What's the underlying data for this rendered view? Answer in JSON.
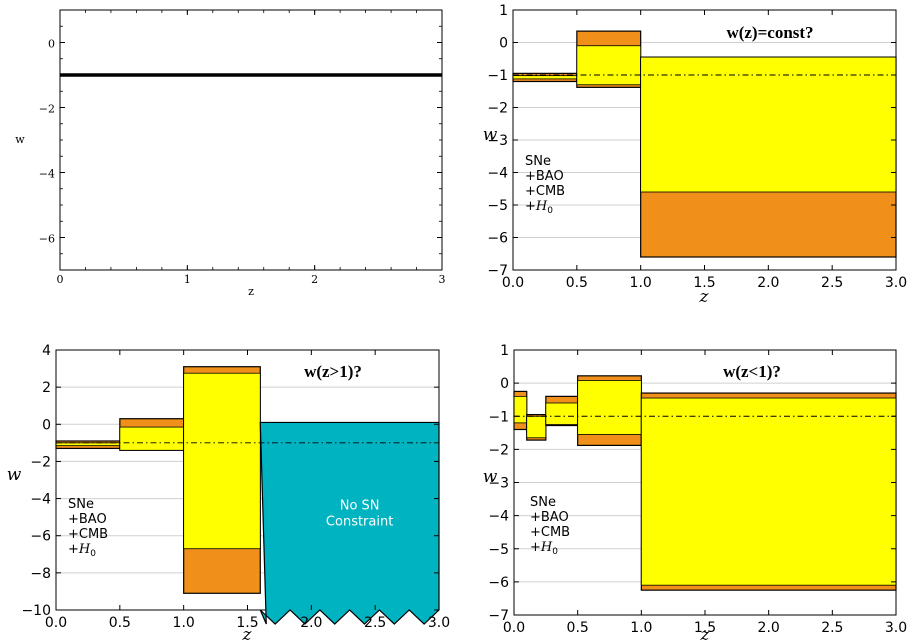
{
  "colors": {
    "orange": "#f0901a",
    "yellow": "#ffff00",
    "teal": "#00b3c0",
    "grid": "#d0d0d0",
    "line": "#000000"
  },
  "chart_data": [
    {
      "id": "p1",
      "type": "line",
      "title": "",
      "xlabel": "z",
      "ylabel": "w",
      "xlim": [
        0,
        3
      ],
      "ylim": [
        -7,
        1
      ],
      "xticks": [
        0,
        1,
        2,
        3
      ],
      "yticks": [
        0,
        -2,
        -4,
        -6
      ],
      "ytick_labels": [
        "0",
        "−2",
        "−4",
        "−6"
      ],
      "grid": false,
      "lines": [
        {
          "x": [
            0,
            3
          ],
          "y": [
            -1,
            -1
          ],
          "style": "thick"
        }
      ]
    },
    {
      "id": "p2",
      "type": "bar",
      "title": "w(z)=const?",
      "xlabel": "z",
      "ylabel": "w",
      "xlim": [
        0,
        3
      ],
      "ylim": [
        -7,
        1
      ],
      "xticks": [
        0,
        0.5,
        1,
        1.5,
        2,
        2.5,
        3
      ],
      "xtick_labels": [
        "0.0",
        "0.5",
        "1.0",
        "1.5",
        "2.0",
        "2.5",
        "3.0"
      ],
      "yticks": [
        1,
        0,
        -1,
        -2,
        -3,
        -4,
        -5,
        -6,
        -7
      ],
      "ytick_labels": [
        "1",
        "0",
        "−1",
        "−2",
        "−3",
        "−4",
        "−5",
        "−6",
        "−7"
      ],
      "grid": true,
      "reference_line": -1,
      "bins": [
        {
          "z": [
            0,
            0.5
          ],
          "outer": [
            -1.2,
            -0.95
          ],
          "inner": [
            -1.12,
            -1.02
          ]
        },
        {
          "z": [
            0.5,
            1.0
          ],
          "outer": [
            -1.38,
            0.35
          ],
          "inner": [
            -1.3,
            -0.1
          ]
        },
        {
          "z": [
            1.0,
            3.0
          ],
          "outer": [
            -6.6,
            -0.45
          ],
          "inner": [
            -4.6,
            -0.45
          ]
        }
      ],
      "annotation": [
        "SNe",
        "+BAO",
        "+CMB",
        "+H0"
      ]
    },
    {
      "id": "p3",
      "type": "bar",
      "title": "w(z>1)?",
      "xlabel": "z",
      "ylabel": "w",
      "xlim": [
        0,
        3
      ],
      "ylim": [
        -10,
        4
      ],
      "xticks": [
        0,
        0.5,
        1,
        1.5,
        2,
        2.5,
        3
      ],
      "xtick_labels": [
        "0.0",
        "0.5",
        "1.0",
        "1.5",
        "2.0",
        "2.5",
        "3.0"
      ],
      "yticks": [
        4,
        2,
        0,
        -2,
        -4,
        -6,
        -8,
        -10
      ],
      "ytick_labels": [
        "4",
        "2",
        "0",
        "−2",
        "−4",
        "−6",
        "−8",
        "−10"
      ],
      "grid": true,
      "reference_line": -1,
      "bins": [
        {
          "z": [
            0,
            0.5
          ],
          "outer": [
            -1.3,
            -0.9
          ],
          "inner": [
            -1.15,
            -1.0
          ]
        },
        {
          "z": [
            0.5,
            1.0
          ],
          "outer": [
            -1.4,
            0.3
          ],
          "inner": [
            -1.4,
            -0.15
          ]
        },
        {
          "z": [
            1.0,
            1.6
          ],
          "outer": [
            -9.1,
            3.1
          ],
          "inner": [
            -6.7,
            2.75
          ]
        }
      ],
      "unconstrained": {
        "z": [
          1.6,
          3.0
        ],
        "top": 0.1,
        "label": [
          "No SN",
          "Constraint"
        ]
      },
      "annotation": [
        "SNe",
        "+BAO",
        "+CMB",
        "+H0"
      ]
    },
    {
      "id": "p4",
      "type": "bar",
      "title": "w(z<1)?",
      "xlabel": "z",
      "ylabel": "w",
      "xlim": [
        0,
        3
      ],
      "ylim": [
        -7,
        1
      ],
      "xticks": [
        0,
        0.5,
        1,
        1.5,
        2,
        2.5,
        3
      ],
      "xtick_labels": [
        "0.0",
        "0.5",
        "1.0",
        "1.5",
        "2.0",
        "2.5",
        "3.0"
      ],
      "yticks": [
        1,
        0,
        -1,
        -2,
        -3,
        -4,
        -5,
        -6,
        -7
      ],
      "ytick_labels": [
        "1",
        "0",
        "−1",
        "−2",
        "−3",
        "−4",
        "−5",
        "−6",
        "−7"
      ],
      "grid": true,
      "reference_line": -1,
      "bins": [
        {
          "z": [
            0,
            0.1
          ],
          "outer": [
            -1.4,
            -0.25
          ],
          "inner": [
            -1.2,
            -0.4
          ]
        },
        {
          "z": [
            0.1,
            0.25
          ],
          "outer": [
            -1.72,
            -0.95
          ],
          "inner": [
            -1.65,
            -1.0
          ]
        },
        {
          "z": [
            0.25,
            0.5
          ],
          "outer": [
            -1.28,
            -0.4
          ],
          "inner": [
            -1.25,
            -0.6
          ]
        },
        {
          "z": [
            0.5,
            1.0
          ],
          "outer": [
            -1.88,
            0.22
          ],
          "inner": [
            -1.55,
            0.08
          ]
        },
        {
          "z": [
            1.0,
            3.0
          ],
          "outer": [
            -6.25,
            -0.3
          ],
          "inner": [
            -6.1,
            -0.45
          ]
        }
      ],
      "annotation": [
        "SNe",
        "+BAO",
        "+CMB",
        "+H0"
      ]
    }
  ]
}
